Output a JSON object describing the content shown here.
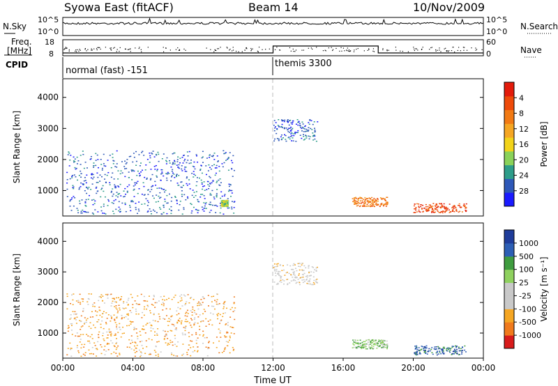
{
  "header": {
    "station": "Syowa East (fitACF)",
    "beam": "Beam 14",
    "date": "10/Nov/2009"
  },
  "colors": {
    "power_scale": [
      "#1a1aff",
      "#2e58b8",
      "#2e9d8a",
      "#8ad25a",
      "#f2d31a",
      "#f5a623",
      "#f27a14",
      "#ee4a0a",
      "#e31b0b"
    ],
    "velocity_scale": [
      "#d81b1b",
      "#f07a1c",
      "#f5a623",
      "#c9c9c9",
      "#c9c9c9",
      "#8fd15f",
      "#3f9c3f",
      "#2d5fb5",
      "#1f3c9a"
    ],
    "gridline": "#bbbbbb"
  },
  "noise_panel": {
    "left_label": "N.Sky",
    "left_ticks": [
      "10^5",
      "10^0"
    ],
    "right_label": "N.Search",
    "right_ticks": [
      "10^5",
      "10^0"
    ]
  },
  "freq_panel": {
    "left_label_1": "Freq.",
    "left_label_2": "[MHz]",
    "left_ticks": [
      "18",
      "8"
    ],
    "right_label": "Nave",
    "right_ticks": [
      "60",
      "0"
    ]
  },
  "cpid_panel": {
    "label": "CPID",
    "modes": [
      {
        "name": "normal (fast) -151",
        "start_hour": 0
      },
      {
        "name": "themis 3300",
        "start_hour": 12
      }
    ]
  },
  "x_axis": {
    "label": "Time UT",
    "ticks": [
      "00:00",
      "04:00",
      "08:00",
      "12:00",
      "16:00",
      "20:00",
      "00:00"
    ]
  },
  "chart_data": [
    {
      "type": "heatmap",
      "title": "Power",
      "xlabel": "Time UT",
      "ylabel": "Slant Range [km]",
      "xlim": [
        0,
        24
      ],
      "ylim": [
        180,
        4600
      ],
      "yticks": [
        "1000",
        "2000",
        "3000",
        "4000"
      ],
      "colorbar": {
        "label": "Power [dB]",
        "range": [
          0,
          30
        ],
        "ticks": [
          "4",
          "8",
          "12",
          "16",
          "20",
          "24",
          "28"
        ]
      },
      "echo_regions": [
        {
          "t0": 0.2,
          "t1": 9.8,
          "r0": 250,
          "r1": 2300,
          "level": 1,
          "density": "sparse"
        },
        {
          "t0": 9.0,
          "t1": 9.4,
          "r0": 500,
          "r1": 700,
          "level": 3
        },
        {
          "t0": 12.0,
          "t1": 14.5,
          "r0": 2600,
          "r1": 3300,
          "level": 1
        },
        {
          "t0": 16.5,
          "t1": 18.5,
          "r0": 500,
          "r1": 800,
          "level": 6
        },
        {
          "t0": 20.0,
          "t1": 23.0,
          "r0": 300,
          "r1": 600,
          "level": 7
        }
      ]
    },
    {
      "type": "heatmap",
      "title": "Velocity",
      "xlabel": "Time UT",
      "ylabel": "Slant Range [km]",
      "xlim": [
        0,
        24
      ],
      "ylim": [
        180,
        4600
      ],
      "yticks": [
        "1000",
        "2000",
        "3000",
        "4000"
      ],
      "colorbar": {
        "label": "Velocity [m s⁻¹]",
        "range": [
          -1250,
          1250
        ],
        "ticks": [
          "1000",
          "500",
          "100",
          "25",
          "-25",
          "-100",
          "-500",
          "-1000"
        ]
      },
      "echo_regions": [
        {
          "t0": 0.2,
          "t1": 9.8,
          "r0": 250,
          "r1": 2300,
          "level": 2,
          "density": "sparse"
        },
        {
          "t0": 12.0,
          "t1": 14.5,
          "r0": 2600,
          "r1": 3300,
          "level": 3
        },
        {
          "t0": 16.5,
          "t1": 18.5,
          "r0": 500,
          "r1": 800,
          "level": 5
        },
        {
          "t0": 20.0,
          "t1": 23.0,
          "r0": 300,
          "r1": 600,
          "level": 7
        }
      ]
    }
  ]
}
